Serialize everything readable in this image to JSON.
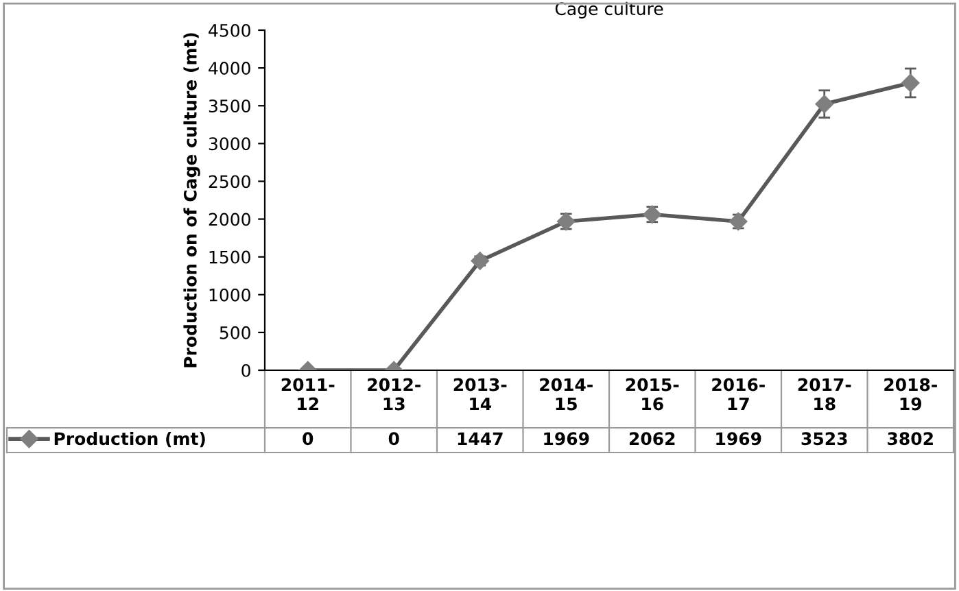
{
  "chart_data": {
    "type": "line",
    "title": "Cage culture",
    "ylabel": "Production on of Cage culture (mt)",
    "categories": [
      "2011-12",
      "2012-13",
      "2013-14",
      "2014-15",
      "2015-16",
      "2016-17",
      "2017-18",
      "2018-19"
    ],
    "series": [
      {
        "name": "Production (mt)",
        "color": "#595959",
        "values": [
          0,
          0,
          1447,
          1969,
          2062,
          1969,
          3523,
          3802
        ],
        "errors": [
          null,
          null,
          60,
          100,
          100,
          90,
          180,
          190
        ]
      }
    ],
    "ylim": [
      0,
      4500
    ],
    "yticks": [
      0,
      500,
      1000,
      1500,
      2000,
      2500,
      3000,
      3500,
      4000,
      4500
    ],
    "marker": "diamond",
    "line_style": "solid",
    "grid": false,
    "legend": "bottom left",
    "data_labels": true
  }
}
